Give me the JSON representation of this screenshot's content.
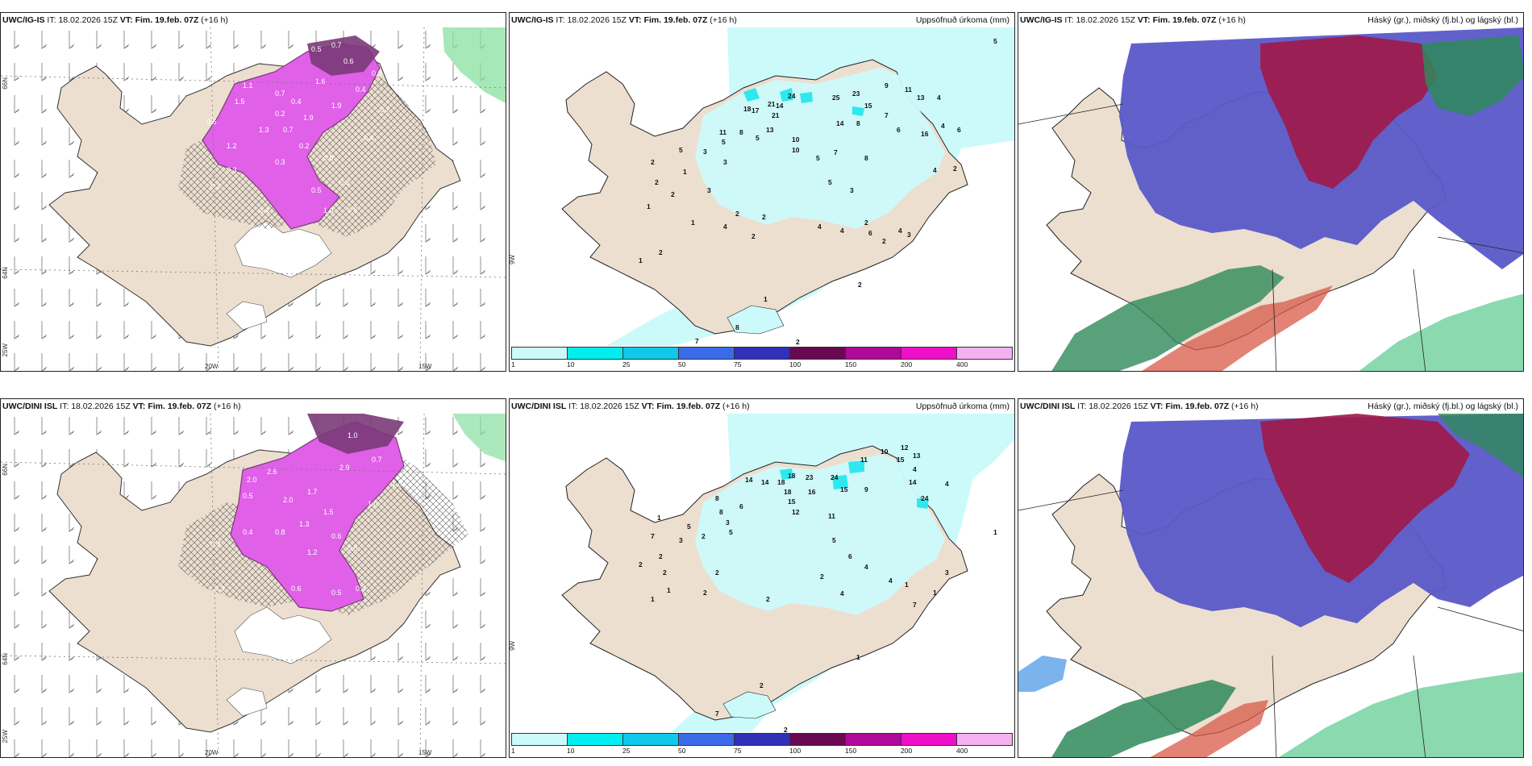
{
  "colors": {
    "land": "#ecdfd0",
    "precip": "#ccfafa",
    "precip_dark": "#2ee8ee",
    "snow": "#e060e8",
    "snow_dark": "#7a3a78",
    "cloud_high": "#5a58c8",
    "cloud_mid": "#a01848",
    "cloud_low": "#2f8a5a",
    "cloud_mix": "#d85a48",
    "sea_green": "#88e0a0"
  },
  "rows": [
    {
      "model": "UWC/IG-IS",
      "it_label": "IT:",
      "it": "18.02.2026 15Z",
      "vt_label": "VT:",
      "vt": "Fim. 19.feb. 07Z",
      "lead": "(+16 h)"
    },
    {
      "model": "UWC/DINI ISL",
      "it_label": "IT:",
      "it": "18.02.2026 15Z",
      "vt_label": "VT:",
      "vt": "Fim. 19.feb. 07Z",
      "lead": "(+16 h)"
    }
  ],
  "titles": {
    "precip": "Uppsöfnuð úrkoma (mm)",
    "cloud": "Háský (gr.), miðský (fj.bl.) og lágský (bl.)"
  },
  "axes": {
    "lat_66": "66N",
    "lat_64": "64N",
    "lon_25": "25W",
    "lon_20": "20W",
    "lon_15": "15W",
    "lon_9": "9W"
  },
  "colorbar": {
    "ticks": [
      "1",
      "10",
      "25",
      "50",
      "75",
      "100",
      "150",
      "200",
      "400"
    ],
    "colors": [
      "#ccfafa",
      "#00eef0",
      "#10c8ea",
      "#3a6cea",
      "#3030b8",
      "#680850",
      "#b00898",
      "#ee10c8",
      "#f4b0f0"
    ]
  },
  "precip_values_top": [
    "5",
    "24",
    "25",
    "23",
    "9",
    "11",
    "13",
    "4",
    "14",
    "18",
    "17",
    "21",
    "21",
    "15",
    "7",
    "11",
    "8",
    "5",
    "13",
    "14",
    "8",
    "6",
    "16",
    "4",
    "6",
    "10",
    "10",
    "5",
    "7",
    "2",
    "2",
    "1",
    "5",
    "3",
    "5",
    "8",
    "3",
    "4",
    "2",
    "3",
    "2",
    "5",
    "1",
    "3",
    "2",
    "2",
    "1",
    "4",
    "4",
    "2",
    "4",
    "4",
    "6",
    "3",
    "2",
    "2",
    "1",
    "2",
    "2",
    "8",
    "7",
    "2",
    "1"
  ],
  "precip_values_bottom": [
    "10",
    "11",
    "12",
    "15",
    "13",
    "4",
    "14",
    "14",
    "18",
    "18",
    "23",
    "24",
    "15",
    "9",
    "16",
    "14",
    "24",
    "4",
    "8",
    "18",
    "15",
    "12",
    "11",
    "8",
    "6",
    "3",
    "5",
    "5",
    "2",
    "7",
    "1",
    "3",
    "2",
    "2",
    "2",
    "2",
    "1",
    "2",
    "1",
    "2",
    "5",
    "6",
    "4",
    "4",
    "2",
    "1",
    "4",
    "7",
    "3",
    "1",
    "1",
    "2",
    "7",
    "2",
    "1"
  ],
  "snow_values_top": [
    "0.5",
    "0.7",
    "0.6",
    "0.4",
    "0.2",
    "1.1",
    "1.6",
    "0.4",
    "1.5",
    "1.3",
    "1.9",
    "0.7",
    "0.2",
    "0.3",
    "0.4",
    "1.2",
    "0.8",
    "0.5",
    "0.3",
    "0.7",
    "0.6",
    "0.2",
    "1.0",
    "0.5",
    "0.4",
    "0.3",
    "0.9",
    "1.9",
    "0.7"
  ],
  "snow_values_bottom": [
    "1.0",
    "2.0",
    "2.6",
    "2.9",
    "0.7",
    "1.7",
    "0.5",
    "2.0",
    "1.5",
    "1.0",
    "1.3",
    "0.8",
    "0.6",
    "0.5",
    "0.4",
    "0.3",
    "1.2",
    "0.6",
    "0.5",
    "1.8",
    "0.3",
    "0.4"
  ]
}
